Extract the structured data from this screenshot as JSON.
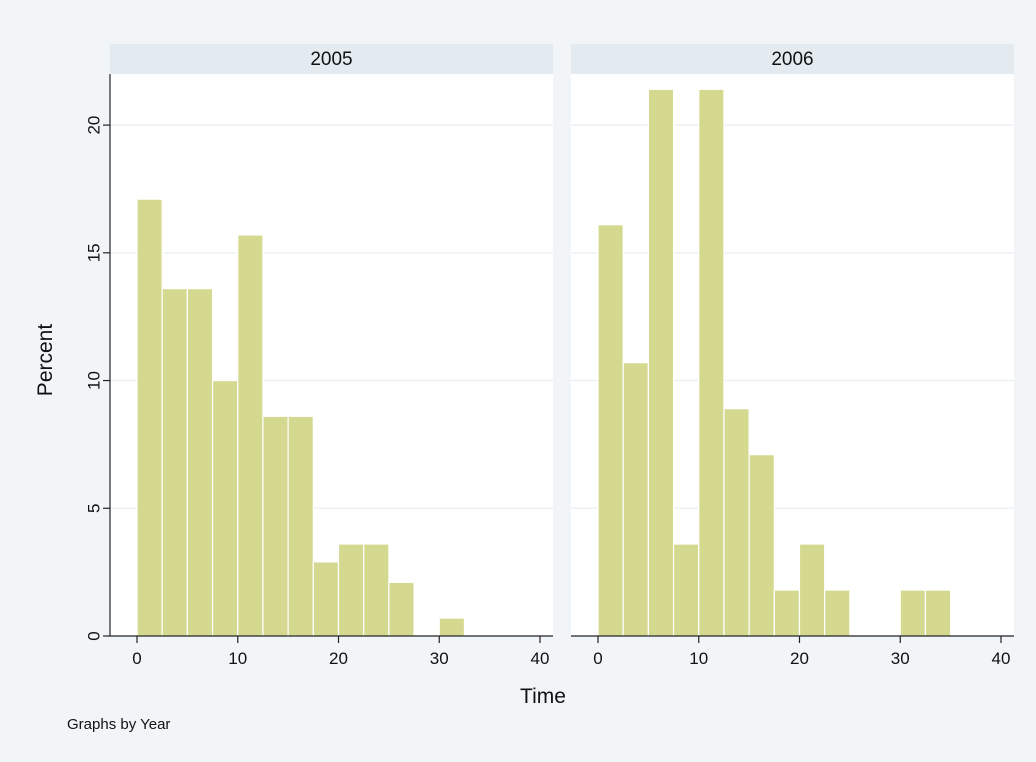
{
  "chart_data": {
    "type": "bar",
    "xlabel": "Time",
    "ylabel": "Percent",
    "note": "Graphs by Year",
    "bin_width": 2.5,
    "xlim": [
      0,
      40
    ],
    "ylim": [
      0,
      22
    ],
    "xticks": [
      0,
      10,
      20,
      30,
      40
    ],
    "yticks": [
      0,
      5,
      10,
      15,
      20
    ],
    "colors": {
      "bar": "#d4d98f",
      "strip": "#e3ebf1",
      "outer": "#f2f5f8"
    },
    "panels": [
      {
        "title": "2005",
        "bin_starts": [
          0,
          2.5,
          5,
          7.5,
          10,
          12.5,
          15,
          17.5,
          20,
          22.5,
          25,
          27.5,
          30
        ],
        "values": [
          17.1,
          13.6,
          13.6,
          10.0,
          15.7,
          8.6,
          8.6,
          2.9,
          3.6,
          3.6,
          2.1,
          0,
          0.7
        ]
      },
      {
        "title": "2006",
        "bin_starts": [
          0,
          2.5,
          5,
          7.5,
          10,
          12.5,
          15,
          17.5,
          20,
          22.5,
          25,
          27.5,
          30,
          32.5
        ],
        "values": [
          16.1,
          10.7,
          21.4,
          3.6,
          21.4,
          8.9,
          7.1,
          1.8,
          3.6,
          1.8,
          0,
          0,
          1.8,
          1.8
        ]
      }
    ]
  }
}
